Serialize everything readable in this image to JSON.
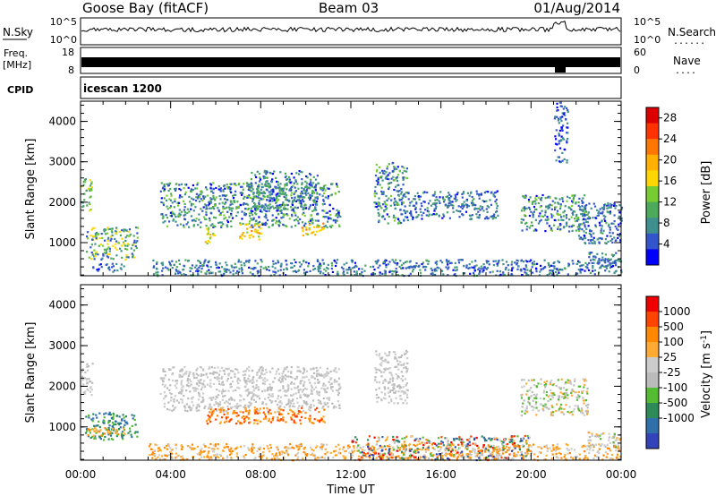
{
  "header": {
    "station": "Goose Bay (fitACF)",
    "beam": "Beam 03",
    "date": "01/Aug/2014"
  },
  "noise_panel": {
    "left_label": "N.Sky",
    "right_label": "N.Search",
    "left_ticks": [
      "10^5",
      "10^0"
    ],
    "right_ticks": [
      "10^5",
      "10^0"
    ]
  },
  "freq_panel": {
    "left_label_top": "Freq.",
    "left_label_bottom": "[MHz]",
    "right_label": "Nave",
    "left_ticks": [
      "18",
      "8"
    ],
    "right_ticks": [
      "60",
      "0"
    ]
  },
  "cpid_panel": {
    "left_label": "CPID",
    "mode_name": "icescan 1200"
  },
  "chart_data": [
    {
      "type": "heatmap",
      "title": "",
      "xlabel": "",
      "ylabel": "Slant Range [km]",
      "xlim": [
        0,
        24
      ],
      "ylim": [
        180,
        4500
      ],
      "y_ticks": [
        1000,
        2000,
        3000,
        4000
      ],
      "colorbar": {
        "label": "Power [dB]",
        "range": [
          0,
          30
        ],
        "ticks": [
          4,
          8,
          12,
          16,
          20,
          24,
          28
        ],
        "colors": [
          "#0000ff",
          "#3355cc",
          "#3f8f8f",
          "#4daa5a",
          "#77cc33",
          "#ffd700",
          "#ffb000",
          "#ff7700",
          "#ff3300",
          "#dd0000"
        ]
      },
      "scatter_regions_UT_hours_km": [
        {
          "t": [
            0.0,
            0.5
          ],
          "r": [
            1800,
            2600
          ],
          "v": [
            6,
            18
          ]
        },
        {
          "t": [
            0.2,
            2.5
          ],
          "r": [
            600,
            1400
          ],
          "v": [
            4,
            18
          ]
        },
        {
          "t": [
            0.5,
            2.0
          ],
          "r": [
            300,
            500
          ],
          "v": [
            2,
            8
          ]
        },
        {
          "t": [
            3.5,
            11.5
          ],
          "r": [
            1400,
            2500
          ],
          "v": [
            2,
            14
          ]
        },
        {
          "t": [
            7.5,
            10.5
          ],
          "r": [
            1800,
            2800
          ],
          "v": [
            2,
            12
          ]
        },
        {
          "t": [
            5.5,
            6.0
          ],
          "r": [
            1000,
            1400
          ],
          "v": [
            12,
            20
          ]
        },
        {
          "t": [
            7.0,
            8.0
          ],
          "r": [
            1100,
            1500
          ],
          "v": [
            14,
            22
          ]
        },
        {
          "t": [
            9.8,
            10.8
          ],
          "r": [
            1200,
            1500
          ],
          "v": [
            14,
            22
          ]
        },
        {
          "t": [
            3.0,
            24.0
          ],
          "r": [
            200,
            600
          ],
          "v": [
            2,
            10
          ]
        },
        {
          "t": [
            13.0,
            14.5
          ],
          "r": [
            1500,
            3000
          ],
          "v": [
            2,
            14
          ]
        },
        {
          "t": [
            14.5,
            18.5
          ],
          "r": [
            1600,
            2300
          ],
          "v": [
            2,
            10
          ]
        },
        {
          "t": [
            19.5,
            22.5
          ],
          "r": [
            1300,
            2200
          ],
          "v": [
            2,
            14
          ]
        },
        {
          "t": [
            22.0,
            24.0
          ],
          "r": [
            1000,
            2000
          ],
          "v": [
            2,
            10
          ]
        },
        {
          "t": [
            22.5,
            24.0
          ],
          "r": [
            500,
            800
          ],
          "v": [
            4,
            10
          ]
        },
        {
          "t": [
            21.0,
            21.6
          ],
          "r": [
            3000,
            4500
          ],
          "v": [
            2,
            8
          ]
        }
      ]
    },
    {
      "type": "heatmap",
      "title": "",
      "xlabel": "Time UT",
      "ylabel": "Slant Range [km]",
      "xlim": [
        0,
        24
      ],
      "ylim": [
        180,
        4500
      ],
      "x_ticks": [
        "00:00",
        "04:00",
        "08:00",
        "12:00",
        "16:00",
        "20:00",
        "00:00"
      ],
      "y_ticks": [
        1000,
        2000,
        3000,
        4000
      ],
      "colorbar": {
        "label": "Velocity [m s^-1]",
        "tick_labels": [
          "1000",
          "500",
          "100",
          "25",
          "-25",
          "-100",
          "-500",
          "-1000"
        ],
        "colors": [
          "#3344bb",
          "#2f6faa",
          "#2e8b57",
          "#55bb33",
          "#bbbbbb",
          "#cccccc",
          "#ffaa33",
          "#ff8800",
          "#ff4400",
          "#ee0000"
        ]
      },
      "scatter_regions_UT_hours_km": [
        {
          "t": [
            0.0,
            0.5
          ],
          "r": [
            1800,
            2600
          ],
          "c": [
            4,
            5
          ]
        },
        {
          "t": [
            0.2,
            2.5
          ],
          "r": [
            700,
            1400
          ],
          "c": [
            1,
            3
          ]
        },
        {
          "t": [
            0.3,
            2.0
          ],
          "r": [
            800,
            1000
          ],
          "c": [
            6,
            7
          ]
        },
        {
          "t": [
            3.5,
            11.5
          ],
          "r": [
            1400,
            2500
          ],
          "c": [
            4,
            5
          ]
        },
        {
          "t": [
            5.5,
            10.8
          ],
          "r": [
            1100,
            1500
          ],
          "c": [
            6,
            8
          ]
        },
        {
          "t": [
            3.0,
            24.0
          ],
          "r": [
            200,
            600
          ],
          "c": [
            5,
            7
          ]
        },
        {
          "t": [
            12.0,
            20.0
          ],
          "r": [
            200,
            800
          ],
          "c": [
            0,
            9
          ]
        },
        {
          "t": [
            13.0,
            14.5
          ],
          "r": [
            1600,
            2900
          ],
          "c": [
            4,
            5
          ]
        },
        {
          "t": [
            19.5,
            22.5
          ],
          "r": [
            1300,
            2200
          ],
          "c": [
            3,
            6
          ]
        },
        {
          "t": [
            22.5,
            24.0
          ],
          "r": [
            500,
            900
          ],
          "c": [
            3,
            6
          ]
        }
      ]
    }
  ]
}
